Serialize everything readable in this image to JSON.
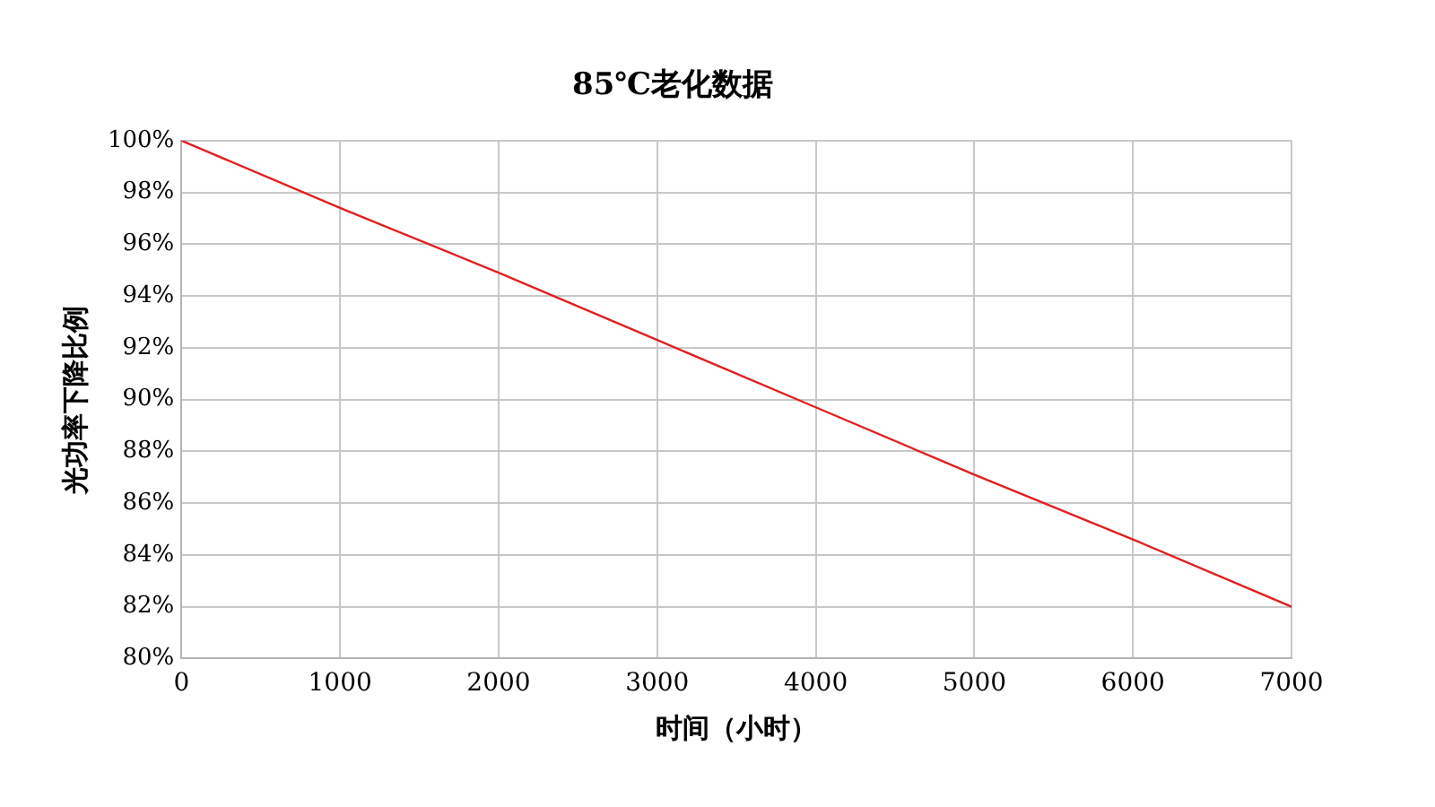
{
  "chart_data": {
    "type": "line",
    "title": "85℃老化数据",
    "xlabel": "时间（小时）",
    "ylabel": "光功率下降比例",
    "x": [
      0,
      1000,
      2000,
      3000,
      4000,
      5000,
      6000,
      7000
    ],
    "series": [
      {
        "color": "#e02020",
        "values": [
          100,
          97.4,
          94.9,
          92.3,
          89.7,
          87.1,
          84.6,
          82
        ]
      }
    ],
    "xlim": [
      0,
      7000
    ],
    "xticks": [
      0,
      1000,
      2000,
      3000,
      4000,
      5000,
      6000,
      7000
    ],
    "ylim": [
      80,
      100
    ],
    "yticks": [
      {
        "value": 80,
        "label": "80%"
      },
      {
        "value": 82,
        "label": "82%"
      },
      {
        "value": 84,
        "label": "84%"
      },
      {
        "value": 86,
        "label": "86%"
      },
      {
        "value": 88,
        "label": "88%"
      },
      {
        "value": 90,
        "label": "90%"
      },
      {
        "value": 92,
        "label": "92%"
      },
      {
        "value": 94,
        "label": "94%"
      },
      {
        "value": 96,
        "label": "96%"
      },
      {
        "value": 98,
        "label": "98%"
      },
      {
        "value": 100,
        "label": "100%"
      }
    ],
    "grid": true,
    "legend": false,
    "marker": "none",
    "line_style": "solid"
  }
}
